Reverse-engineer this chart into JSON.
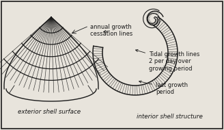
{
  "background_color": "#e8e4dc",
  "border_color": "#1a1a1a",
  "text_color": "#1a1a1a",
  "title_left": "exterior shell surface",
  "title_right": "interior shell structure",
  "label_annual": "annual growth\ncessation lines",
  "label_tidal": "Tidal growth lines\n2 per day over\ngrowing period",
  "label_last": "last growth\nperiod",
  "figsize": [
    3.28,
    1.9
  ],
  "dpi": 100
}
